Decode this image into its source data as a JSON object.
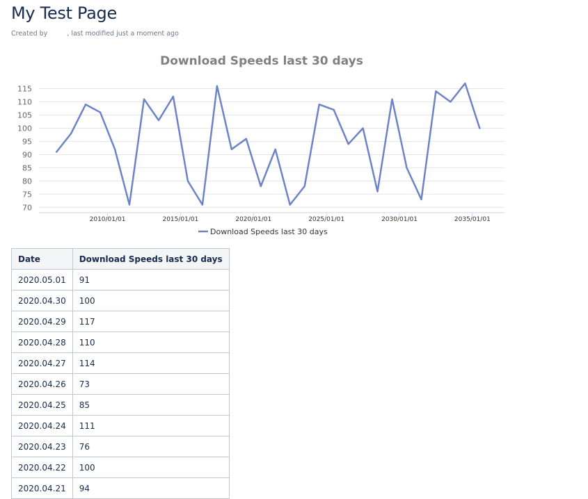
{
  "page": {
    "title": "My Test Page",
    "byline_prefix": "Created by",
    "byline_suffix": ", last modified just a moment ago"
  },
  "chart_data": {
    "type": "line",
    "title": "Download Speeds last 30 days",
    "xlabel": "",
    "ylabel": "",
    "x": [
      2006.5,
      2007.5,
      2008.5,
      2009.5,
      2010.5,
      2011.5,
      2012.5,
      2013.5,
      2014.5,
      2015.5,
      2016.5,
      2017.5,
      2018.5,
      2019.5,
      2020.5,
      2021.5,
      2022.5,
      2023.5,
      2024.5,
      2025.5,
      2026.5,
      2027.5,
      2028.5,
      2029.5,
      2030.5,
      2031.5,
      2032.5,
      2033.5,
      2034.5,
      2035.5
    ],
    "series": [
      {
        "name": "Download Speeds last 30 days",
        "color": "#6d83c8",
        "values": [
          91,
          98,
          109,
          106,
          92,
          71,
          111,
          103,
          112,
          80,
          71,
          116,
          92,
          96,
          78,
          92,
          71,
          78,
          109,
          107,
          94,
          100,
          76,
          111,
          85,
          73,
          114,
          110,
          117,
          100
        ]
      }
    ],
    "x_ticks": [
      {
        "value": 2010,
        "label": "2010/01/01"
      },
      {
        "value": 2015,
        "label": "2015/01/01"
      },
      {
        "value": 2020,
        "label": "2020/01/01"
      },
      {
        "value": 2025,
        "label": "2025/01/01"
      },
      {
        "value": 2030,
        "label": "2030/01/01"
      },
      {
        "value": 2035,
        "label": "2035/01/01"
      }
    ],
    "y_ticks": [
      70,
      75,
      80,
      85,
      90,
      95,
      100,
      105,
      110,
      115
    ],
    "xlim": [
      2005.3,
      2037.2
    ],
    "ylim": [
      68,
      117.5
    ],
    "grid": true,
    "legend": "bottom-center"
  },
  "table": {
    "headers": [
      "Date",
      "Download Speeds last 30 days"
    ],
    "rows": [
      [
        "2020.05.01",
        "91"
      ],
      [
        "2020.04.30",
        "100"
      ],
      [
        "2020.04.29",
        "117"
      ],
      [
        "2020.04.28",
        "110"
      ],
      [
        "2020.04.27",
        "114"
      ],
      [
        "2020.04.26",
        "73"
      ],
      [
        "2020.04.25",
        "85"
      ],
      [
        "2020.04.24",
        "111"
      ],
      [
        "2020.04.23",
        "76"
      ],
      [
        "2020.04.22",
        "100"
      ],
      [
        "2020.04.21",
        "94"
      ]
    ]
  }
}
